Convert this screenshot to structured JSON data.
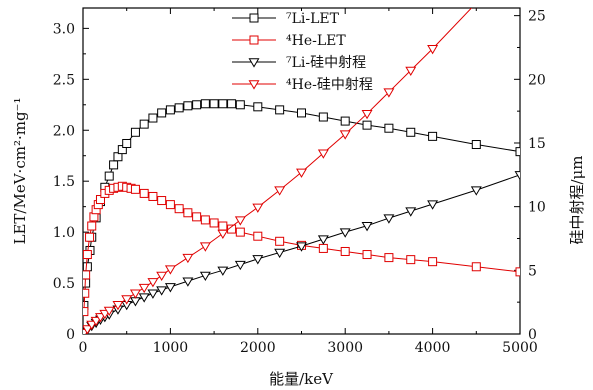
{
  "chart_data": {
    "type": "line",
    "title": "",
    "xlabel": "能量/keV",
    "ylabel_left": "LET/MeV·cm²·mg⁻¹",
    "ylabel_right": "硅中射程/μm",
    "xlim": [
      0,
      5000
    ],
    "ylim_left": [
      0,
      3.2
    ],
    "ylim_right": [
      0,
      25.6
    ],
    "xticks": [
      "0",
      "1000",
      "2000",
      "3000",
      "4000",
      "5000"
    ],
    "yticks_left": [
      "0",
      "0.5",
      "1.0",
      "1.5",
      "2.0",
      "2.5",
      "3.0"
    ],
    "yticks_right": [
      "0",
      "5",
      "10",
      "15",
      "20",
      "25"
    ],
    "legend_position": "top-center",
    "series": [
      {
        "name": "⁷Li-LET",
        "axis": "left",
        "marker": "square",
        "color": "#000000",
        "x": [
          10,
          30,
          50,
          80,
          100,
          150,
          200,
          250,
          300,
          350,
          400,
          450,
          500,
          600,
          700,
          800,
          900,
          1000,
          1100,
          1200,
          1300,
          1400,
          1500,
          1600,
          1700,
          1800,
          2000,
          2250,
          2500,
          2750,
          3000,
          3250,
          3500,
          3750,
          4000,
          4500,
          5000
        ],
        "y": [
          0.28,
          0.5,
          0.66,
          0.82,
          0.95,
          1.14,
          1.3,
          1.44,
          1.55,
          1.66,
          1.74,
          1.81,
          1.87,
          1.98,
          2.06,
          2.12,
          2.17,
          2.2,
          2.22,
          2.24,
          2.25,
          2.26,
          2.26,
          2.26,
          2.26,
          2.25,
          2.23,
          2.2,
          2.17,
          2.13,
          2.09,
          2.05,
          2.02,
          1.98,
          1.94,
          1.86,
          1.79
        ]
      },
      {
        "name": "⁴He-LET",
        "axis": "left",
        "marker": "square",
        "color": "#e00000",
        "x": [
          10,
          20,
          30,
          50,
          75,
          100,
          125,
          150,
          175,
          200,
          250,
          300,
          350,
          400,
          450,
          500,
          550,
          600,
          700,
          800,
          900,
          1000,
          1100,
          1200,
          1300,
          1400,
          1500,
          1600,
          1700,
          1800,
          2000,
          2250,
          2500,
          2750,
          3000,
          3250,
          3500,
          3750,
          4000,
          4500,
          5000
        ],
        "y": [
          0.22,
          0.4,
          0.58,
          0.78,
          0.95,
          1.06,
          1.15,
          1.22,
          1.27,
          1.32,
          1.38,
          1.41,
          1.43,
          1.44,
          1.45,
          1.44,
          1.43,
          1.42,
          1.38,
          1.35,
          1.31,
          1.27,
          1.23,
          1.19,
          1.15,
          1.12,
          1.09,
          1.06,
          1.03,
          1.0,
          0.96,
          0.91,
          0.87,
          0.84,
          0.81,
          0.78,
          0.75,
          0.73,
          0.71,
          0.66,
          0.61
        ]
      },
      {
        "name": "⁷Li-硅中射程",
        "axis": "right",
        "marker": "triangle-down",
        "color": "#000000",
        "x": [
          10,
          50,
          100,
          150,
          200,
          250,
          300,
          400,
          500,
          600,
          700,
          800,
          900,
          1000,
          1200,
          1400,
          1600,
          1800,
          2000,
          2250,
          2500,
          2750,
          3000,
          3250,
          3500,
          3750,
          4000,
          4500,
          5000
        ],
        "y": [
          0.1,
          0.35,
          0.65,
          0.9,
          1.15,
          1.35,
          1.55,
          1.95,
          2.3,
          2.6,
          2.9,
          3.2,
          3.45,
          3.7,
          4.15,
          4.6,
          5.0,
          5.45,
          5.9,
          6.4,
          6.9,
          7.45,
          8.0,
          8.5,
          9.1,
          9.65,
          10.2,
          11.3,
          12.5
        ]
      },
      {
        "name": "⁴He-硅中射程",
        "axis": "right",
        "marker": "triangle-down",
        "color": "#e00000",
        "x": [
          10,
          50,
          100,
          150,
          200,
          250,
          300,
          400,
          500,
          600,
          700,
          800,
          900,
          1000,
          1200,
          1400,
          1600,
          1800,
          2000,
          2250,
          2500,
          2750,
          3000,
          3250,
          3500,
          3750,
          4000,
          4500,
          5000
        ],
        "y": [
          0.1,
          0.4,
          0.75,
          1.05,
          1.35,
          1.6,
          1.85,
          2.3,
          2.75,
          3.2,
          3.65,
          4.1,
          4.6,
          5.1,
          6.0,
          6.9,
          7.9,
          8.95,
          9.95,
          11.3,
          12.7,
          14.2,
          15.7,
          17.3,
          19.0,
          20.7,
          22.4,
          26.0,
          29.7
        ]
      }
    ]
  }
}
